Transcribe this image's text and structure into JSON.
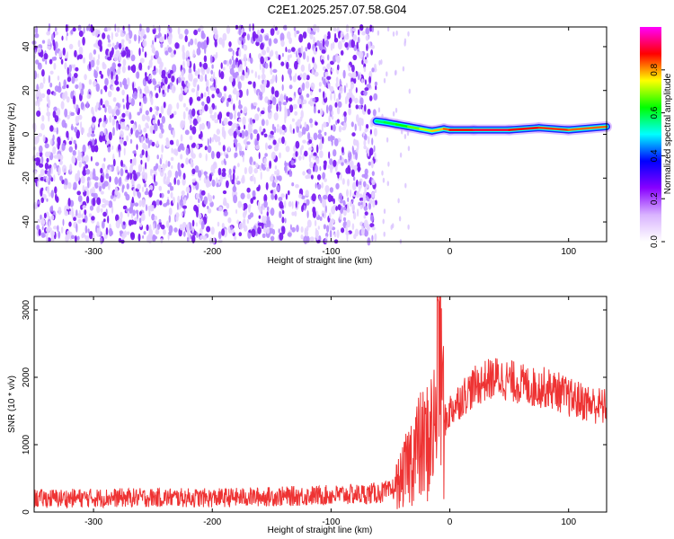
{
  "title": "C2E1.2025.257.07.58.G04",
  "chart_data": [
    {
      "type": "heatmap",
      "xlabel": "Height of straight line (km)",
      "ylabel": "Frequency (Hz)",
      "xlim": [
        -350,
        132
      ],
      "ylim": [
        -49,
        49
      ],
      "xticks": [
        -300,
        -200,
        -100,
        0,
        100
      ],
      "yticks": [
        -40,
        -20,
        0,
        20,
        40
      ],
      "colorbar": {
        "label": "Normalized spectral amplitude",
        "range": [
          0,
          1
        ],
        "ticks": [
          0.0,
          0.2,
          0.4,
          0.6,
          0.8
        ],
        "colormap": [
          "#ffffff",
          "#d9b3ff",
          "#8800ff",
          "#0000ff",
          "#00ffff",
          "#00ff00",
          "#ffff00",
          "#ff0000",
          "#ff00ff"
        ]
      },
      "noise_region_x": [
        -350,
        -62
      ],
      "signal_trace": {
        "x": [
          -62,
          -55,
          -45,
          -35,
          -25,
          -15,
          -5,
          0,
          20,
          50,
          75,
          100,
          132
        ],
        "freq": [
          6,
          5.5,
          4.5,
          3.5,
          2.5,
          1.5,
          2.5,
          2,
          2,
          2,
          3,
          2,
          3.5
        ],
        "amplitude": [
          0.55,
          0.6,
          0.6,
          0.65,
          0.7,
          0.75,
          0.8,
          0.85,
          0.9,
          0.9,
          0.85,
          0.85,
          0.8
        ]
      }
    },
    {
      "type": "line",
      "xlabel": "Height of straight line (km)",
      "ylabel": "SNR (10 * v/v)",
      "xlim": [
        -350,
        132
      ],
      "ylim": [
        0,
        3200
      ],
      "xticks": [
        -300,
        -200,
        -100,
        0,
        100
      ],
      "yticks": [
        0,
        1000,
        2000,
        3000
      ],
      "line_color": "#ee3333",
      "series": [
        {
          "x": [
            -350,
            -300,
            -250,
            -200,
            -150,
            -100,
            -70,
            -50,
            -40,
            -30,
            -20,
            -12,
            -10,
            -5,
            0,
            10,
            20,
            30,
            40,
            50,
            60,
            70,
            80,
            90,
            100,
            110,
            120,
            132
          ],
          "y": [
            200,
            210,
            215,
            210,
            230,
            250,
            270,
            300,
            500,
            900,
            1000,
            1300,
            3150,
            1300,
            1500,
            1700,
            1850,
            1950,
            2000,
            1950,
            1900,
            1850,
            1850,
            1800,
            1700,
            1650,
            1600,
            1550
          ]
        }
      ]
    }
  ]
}
